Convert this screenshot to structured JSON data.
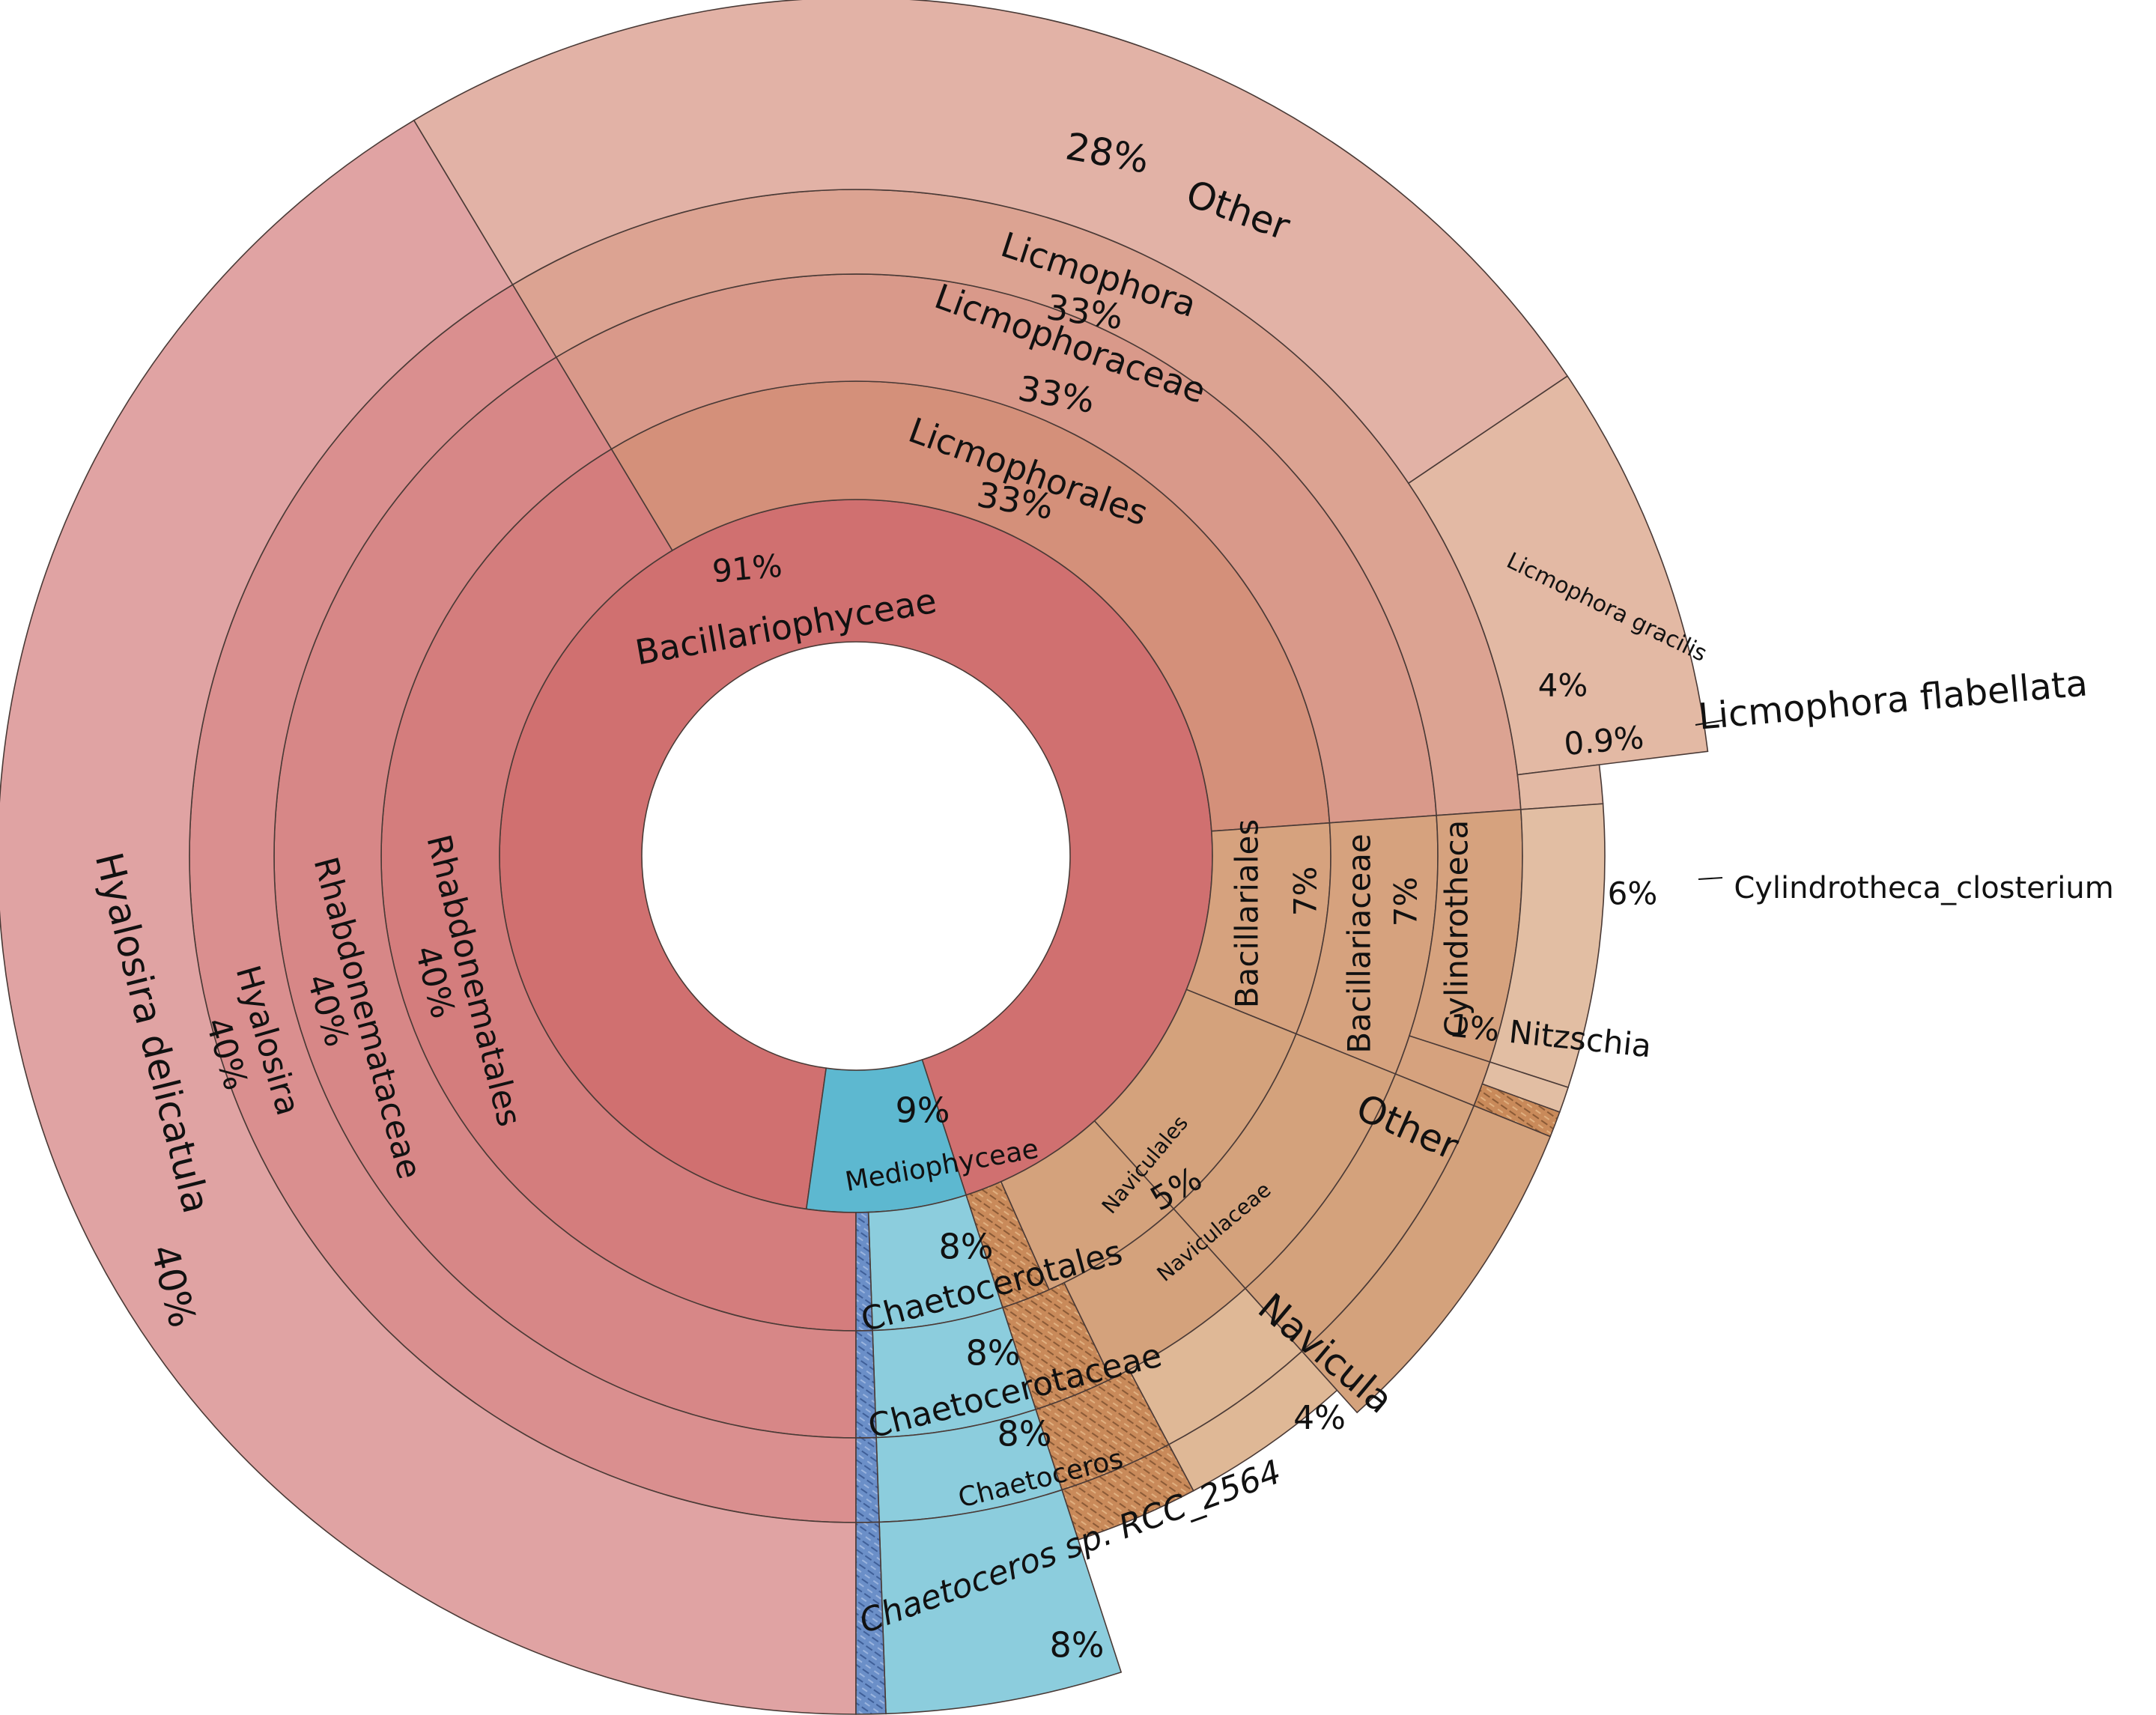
{
  "chart_data": {
    "type": "sunburst",
    "title": "",
    "colors": {
      "bacillario_ring1": "#d07070",
      "rhabdo_ring2": "#d47d7d",
      "rhabdo_ring3": "#d78787",
      "rhabdo_ring4": "#da8f8f",
      "rhabdo_ring5": "#e0a3a3",
      "licmo_ring2": "#d4907a",
      "licmo_ring3": "#d9998a",
      "licmo_ring4": "#dca392",
      "licmo_ring5": "#e2b2a6",
      "licmo_species": "#e3b9a4",
      "bacillariales": "#d6a27e",
      "bacillariales_species": "#e2bea3",
      "naviculales": "#d4a27c",
      "navicula_species": "#dfb896",
      "other_brown": "#d4a27c",
      "other_pink": "#e2b2a6",
      "hatch_brown": "#c98a5a",
      "medio_ring1": "#5db8d0",
      "chaeto": "#8ccddd",
      "hatch_blue": "#6b8fc8",
      "edge": "#4a3a36"
    },
    "nodes": [
      {
        "level": 1,
        "name": "Bacillariophyceae",
        "percent": "91%",
        "value": 91
      },
      {
        "level": 1,
        "name": "Mediophyceae",
        "percent": "9%",
        "value": 9
      },
      {
        "level": 2,
        "name": "Rhabdonematales",
        "percent": "40%",
        "value": 40
      },
      {
        "level": 2,
        "name": "Licmophorales",
        "percent": "33%",
        "value": 33
      },
      {
        "level": 2,
        "name": "Bacillariales",
        "percent": "7%",
        "value": 7
      },
      {
        "level": 2,
        "name": "Naviculales",
        "percent": "5%",
        "value": 5
      },
      {
        "level": 2,
        "name": "Chaetocerotales",
        "percent": "8%",
        "value": 8
      },
      {
        "level": 3,
        "name": "Rhabdonemataceae",
        "percent": "40%",
        "value": 40
      },
      {
        "level": 3,
        "name": "Licmophoraceae",
        "percent": "33%",
        "value": 33
      },
      {
        "level": 3,
        "name": "Bacillariaceae",
        "percent": "7%",
        "value": 7
      },
      {
        "level": 3,
        "name": "Naviculaceae",
        "percent": "",
        "value": 4
      },
      {
        "level": 3,
        "name": "Chaetocerotaceae",
        "percent": "8%",
        "value": 8
      },
      {
        "level": 4,
        "name": "Hyalosira",
        "percent": "40%",
        "value": 40
      },
      {
        "level": 4,
        "name": "Licmophora",
        "percent": "33%",
        "value": 33
      },
      {
        "level": 4,
        "name": "Cylindrotheca",
        "percent": "",
        "value": 6
      },
      {
        "level": 4,
        "name": "Navicula",
        "percent": "4%",
        "value": 4
      },
      {
        "level": 4,
        "name": "Nitzschia",
        "percent": "1%",
        "value": 1
      },
      {
        "level": 4,
        "name": "Chaetoceros",
        "percent": "8%",
        "value": 8
      },
      {
        "level": 5,
        "name": "Hyalosira delicatula",
        "percent": "40%",
        "value": 40
      },
      {
        "level": 5,
        "name": "Other",
        "percent": "28%",
        "value": 28
      },
      {
        "level": 5,
        "name": "Licmophora gracilis",
        "percent": "4%",
        "value": 4
      },
      {
        "level": 5,
        "name": "Licmophora flabellata",
        "percent": "0.9%",
        "value": 0.9
      },
      {
        "level": 5,
        "name": "Cylindrotheca_closterium",
        "percent": "6%",
        "value": 6
      },
      {
        "level": 5,
        "name": "Chaetoceros sp. RCC_2564",
        "percent": "8%",
        "value": 8
      },
      {
        "level": 2,
        "name": "Other",
        "percent": "",
        "value": 0
      }
    ],
    "labels": {
      "bacillario_pct": "91%",
      "bacillario_name": "Bacillariophyceae",
      "medio_pct": "9%",
      "medio_name": "Mediophyceae",
      "rhabdonematales": "Rhabdonematales",
      "rhabdonematales_pct": "40%",
      "rhabdonemataceae": "Rhabdonemataceae",
      "rhabdonemataceae_pct": "40%",
      "hyalosira": "Hyalosira",
      "hyalosira_pct": "40%",
      "hyalosira_delicatula": "Hyalosira delicatula",
      "hyalosira_delicatula_pct": "40%",
      "licmophorales": "Licmophorales",
      "licmophorales_pct": "33%",
      "licmophoraceae": "Licmophoraceae",
      "licmophoraceae_pct": "33%",
      "licmophora": "Licmophora",
      "licmophora_pct": "33%",
      "other_top_pct": "28%",
      "other_top": "Other",
      "licmophora_gracilis": "Licmophora gracilis",
      "licmophora_gracilis_pct": "4%",
      "licmophora_flabellata_pct": "0.9%",
      "licmophora_flabellata": "Licmophora flabellata",
      "cylindrotheca_closterium_pct": "6%",
      "cylindrotheca_closterium": "Cylindrotheca_closterium",
      "bacillariales": "Bacillariales",
      "bacillariales_pct": "7%",
      "bacillariaceae": "Bacillariaceae",
      "bacillariaceae_pct": "7%",
      "cylindrotheca": "Cylindrotheca",
      "nitzschia": "1% Nitzschia",
      "other_right": "Other",
      "naviculales": "Naviculales",
      "naviculales_pct": "5%",
      "naviculaceae": "Naviculaceae",
      "navicula": "Navicula",
      "navicula_pct": "4%",
      "chaetocerotales_pct": "8%",
      "chaetocerotales": "Chaetocerotales",
      "chaetocerotaceae_pct": "8%",
      "chaetocerotaceae": "Chaetocerotaceae",
      "chaetoceros_pct": "8%",
      "chaetoceros": "Chaetoceros",
      "chaetoceros_rcc": "Chaetoceros sp. RCC_2564",
      "chaetoceros_rcc_pct": "8%"
    }
  }
}
